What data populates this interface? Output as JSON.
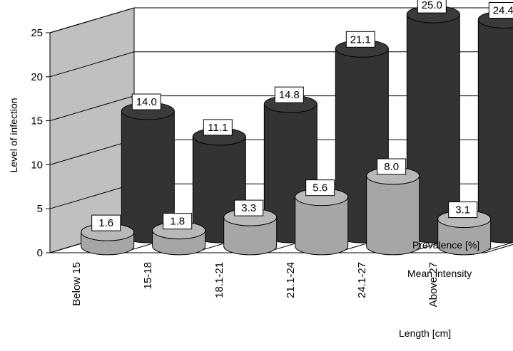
{
  "chart_data": {
    "type": "bar",
    "style": "3d-cylinder",
    "categories": [
      "Below 15",
      "15-18",
      "18.1-21",
      "21.1-24",
      "24.1-27",
      "Above 27"
    ],
    "series": [
      {
        "name": "Prevalence [%]",
        "values": [
          14.0,
          11.1,
          14.8,
          21.1,
          25.0,
          24.4
        ],
        "color": "#333333"
      },
      {
        "name": "Mean intensity",
        "values": [
          1.6,
          1.8,
          3.3,
          5.6,
          8.0,
          3.1
        ],
        "color": "#a6a6a6"
      }
    ],
    "data_labels": {
      "Prevalence [%]": [
        "14.0",
        "11.1",
        "14.8",
        "21.1",
        "25.0",
        "24.4"
      ],
      "Mean intensity": [
        "1.6",
        "1.8",
        "3.3",
        "5.6",
        "8.0",
        "3.1"
      ]
    },
    "ylabel": "Level of infection",
    "xlabel": "Length [cm]",
    "ylim": [
      0,
      25
    ],
    "yticks": [
      "0",
      "5",
      "10",
      "15",
      "20",
      "25"
    ],
    "grid": true,
    "colors": {
      "wall_left": "#c0c0c0",
      "wall_back": "#ffffff",
      "gridline": "#000000"
    }
  }
}
